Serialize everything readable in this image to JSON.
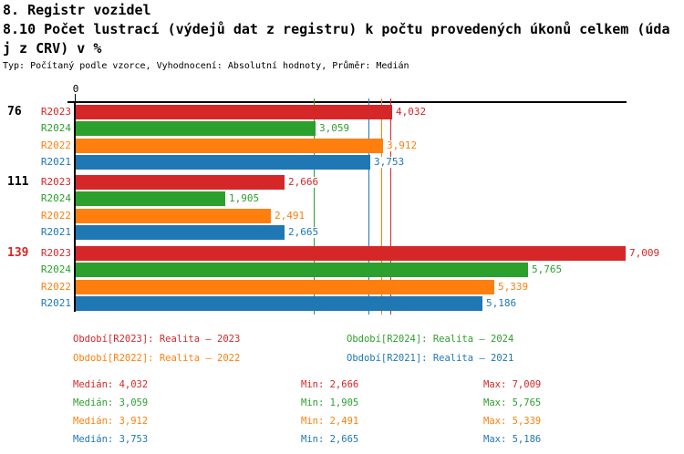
{
  "header": {
    "title": "8. Registr vozidel",
    "subtitle_line1": "8.10 Počet lustrací (výdejů dat z registru) k počtu provedených úkonů celkem (úda",
    "subtitle_line2": "j z CRV) v %",
    "meta": "Typ: Počítaný podle vzorce, Vyhodnocení: Absolutní hodnoty, Průměr: Medián"
  },
  "chart_data": {
    "type": "bar",
    "orientation": "horizontal",
    "title": "8.10 Počet lustrací (výdejů dat z registru) k počtu provedených úkonů celkem (údaj z CRV) v %",
    "origin_tick_label": "0",
    "xlim": [
      0,
      7009
    ],
    "grid": false,
    "legend_position": "bottom",
    "categories": [
      "76",
      "111",
      "139"
    ],
    "category_colors": [
      "#000000",
      "#000000",
      "#d62728"
    ],
    "series": [
      {
        "name": "R2023",
        "color": "#d62728",
        "values": [
          4032,
          2666,
          7009
        ],
        "value_labels": [
          "4,032",
          "2,666",
          "7,009"
        ],
        "median": 4032
      },
      {
        "name": "R2024",
        "color": "#2ca02c",
        "values": [
          3059,
          1905,
          5765
        ],
        "value_labels": [
          "3,059",
          "1,905",
          "5,765"
        ],
        "median": 3059
      },
      {
        "name": "R2022",
        "color": "#ff7f0e",
        "values": [
          3912,
          2491,
          5339
        ],
        "value_labels": [
          "3,912",
          "2,491",
          "5,339"
        ],
        "median": 3912
      },
      {
        "name": "R2021",
        "color": "#1f77b4",
        "values": [
          3753,
          2665,
          5186
        ],
        "value_labels": [
          "3,753",
          "2,665",
          "5,186"
        ],
        "median": 3753
      }
    ],
    "median_lines_shown": true
  },
  "legend": {
    "items": [
      {
        "text": "Období[R2023]: Realita – 2023",
        "color": "#d62728"
      },
      {
        "text": "Období[R2024]: Realita – 2024",
        "color": "#2ca02c"
      },
      {
        "text": "Období[R2022]: Realita – 2022",
        "color": "#ff7f0e"
      },
      {
        "text": "Období[R2021]: Realita – 2021",
        "color": "#1f77b4"
      }
    ]
  },
  "stats": {
    "rows": [
      {
        "median": "Medián: 4,032",
        "min": "Min: 2,666",
        "max": "Max: 7,009",
        "color": "#d62728"
      },
      {
        "median": "Medián: 3,059",
        "min": "Min: 1,905",
        "max": "Max: 5,765",
        "color": "#2ca02c"
      },
      {
        "median": "Medián: 3,912",
        "min": "Min: 2,491",
        "max": "Max: 5,339",
        "color": "#ff7f0e"
      },
      {
        "median": "Medián: 3,753",
        "min": "Min: 2,665",
        "max": "Max: 5,186",
        "color": "#1f77b4"
      }
    ]
  }
}
